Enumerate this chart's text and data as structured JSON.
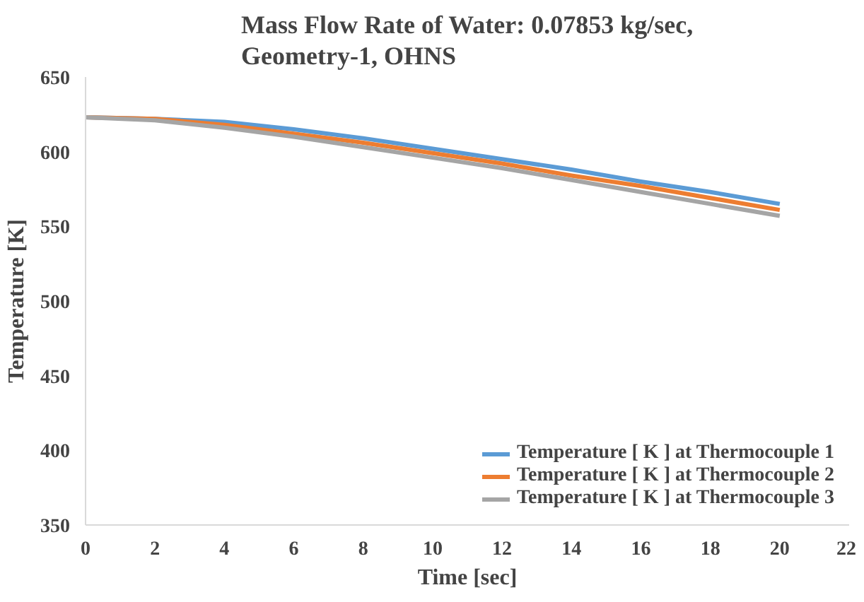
{
  "chart_data": {
    "type": "line",
    "title": "Mass Flow Rate of Water: 0.07853 kg/sec,\nGeometry-1, OHNS",
    "xlabel": "Time [sec]",
    "ylabel": "Temperature [K]",
    "x": [
      0,
      2,
      4,
      6,
      8,
      10,
      12,
      14,
      16,
      18,
      20
    ],
    "series": [
      {
        "name": "Temperature [ K ] at Thermocouple 1",
        "color": "#5b9bd5",
        "values": [
          623,
          622,
          620,
          615,
          609,
          602,
          595,
          588,
          580,
          573,
          565
        ]
      },
      {
        "name": "Temperature [ K ] at Thermocouple 2",
        "color": "#ed7d31",
        "values": [
          623,
          622,
          618,
          612,
          606,
          599,
          592,
          584,
          577,
          569,
          561
        ]
      },
      {
        "name": "Temperature [ K ] at Thermocouple 3",
        "color": "#a5a5a5",
        "values": [
          623,
          621,
          616,
          610,
          603,
          596,
          589,
          581,
          573,
          565,
          557
        ]
      }
    ],
    "xlim": [
      0,
      22
    ],
    "xticks": [
      0,
      2,
      4,
      6,
      8,
      10,
      12,
      14,
      16,
      18,
      20,
      22
    ],
    "ylim": [
      350,
      650
    ],
    "yticks": [
      350,
      400,
      450,
      500,
      550,
      600,
      650
    ],
    "grid": false,
    "legend": "bottom right",
    "marker": "none",
    "line_style": "solid"
  }
}
